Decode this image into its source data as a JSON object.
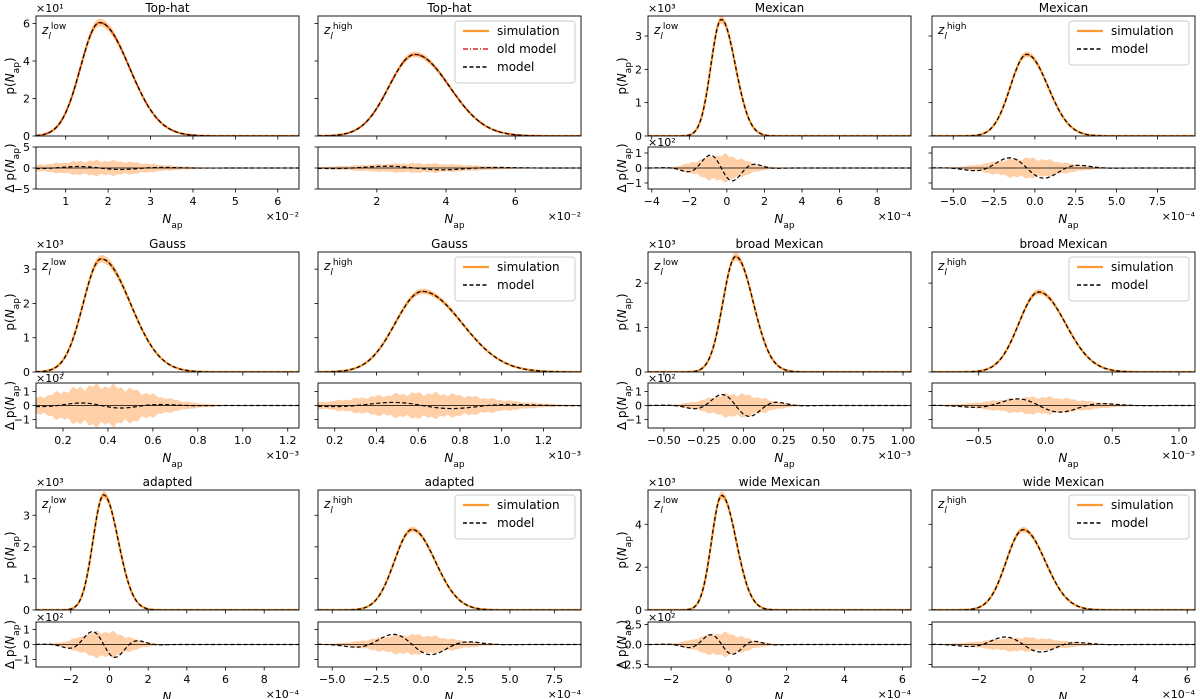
{
  "colors": {
    "simulation": "#ff9933",
    "band": "#ffcfa8",
    "old_model": "#d62728",
    "model": "#000000",
    "zero_line": "#000000"
  },
  "labels": {
    "ylabel_top": "p(N_ap)",
    "ylabel_bottom": "Δ p(N_ap)",
    "xlabel": "N_ap",
    "zlow": "z_l^low",
    "zhigh": "z_l^high",
    "legend_simulation": "simulation",
    "legend_old_model": "old model",
    "legend_model": "model"
  },
  "chart_data": [
    {
      "id": "tophat-low",
      "title": "Top-hat",
      "redshift": "low",
      "type": "line",
      "legend": false,
      "top": {
        "ylim": [
          0,
          6.4
        ],
        "yticks": [
          "0",
          "2",
          "4",
          "6"
        ],
        "yexp": "×10¹",
        "peak_x": 1.8,
        "peak_y": 6.05,
        "sig_l": 0.45,
        "sig_r": 0.7
      },
      "bottom": {
        "ylim": [
          -5,
          5
        ],
        "yticks": [
          "−5",
          "0",
          "5"
        ],
        "yexp": "",
        "resid_amp": 0.4,
        "band_half": 1.6
      },
      "xlim": [
        0.3,
        6.5
      ],
      "xticks": [
        "1",
        "2",
        "3",
        "4",
        "5",
        "6"
      ],
      "xtickvals": [
        1,
        2,
        3,
        4,
        5,
        6
      ],
      "xexp": "×10⁻²"
    },
    {
      "id": "tophat-high",
      "title": "Top-hat",
      "redshift": "high",
      "type": "line",
      "legend": true,
      "legend_items": [
        "simulation",
        "old_model",
        "model"
      ],
      "top": {
        "ylim": [
          0,
          6.4
        ],
        "yticks": [],
        "yexp": "",
        "peak_x": 3.1,
        "peak_y": 4.35,
        "sig_l": 0.75,
        "sig_r": 1.0
      },
      "bottom": {
        "ylim": [
          -5,
          5
        ],
        "yticks": [],
        "yexp": "",
        "resid_amp": 0.5,
        "band_half": 1.0
      },
      "xlim": [
        0.3,
        7.9
      ],
      "xticks": [
        "2",
        "4",
        "6"
      ],
      "xtickvals": [
        2,
        4,
        6
      ],
      "xexp": "×10⁻²"
    },
    {
      "id": "mexican-low",
      "title": "Mexican",
      "redshift": "low",
      "type": "line",
      "legend": false,
      "top": {
        "ylim": [
          0,
          3.6
        ],
        "yticks": [
          "0",
          "1",
          "2",
          "3"
        ],
        "yexp": "×10³",
        "peak_x": -0.3,
        "peak_y": 3.5,
        "sig_l": 0.55,
        "sig_r": 0.75
      },
      "bottom": {
        "ylim": [
          -1.4,
          1.4
        ],
        "yticks": [
          "−1",
          "0",
          "1"
        ],
        "yexp": "×10²",
        "resid_amp": 1.0,
        "band_half": 0.8
      },
      "xlim": [
        -4.2,
        9.8
      ],
      "xticks": [
        "−4",
        "−2",
        "0",
        "2",
        "4",
        "6",
        "8"
      ],
      "xtickvals": [
        -4,
        -2,
        0,
        2,
        4,
        6,
        8
      ],
      "xexp": "×10⁻⁴"
    },
    {
      "id": "mexican-high",
      "title": "Mexican",
      "redshift": "high",
      "type": "line",
      "legend": true,
      "legend_items": [
        "simulation",
        "model"
      ],
      "top": {
        "ylim": [
          0,
          3.6
        ],
        "yticks": [],
        "yexp": "",
        "peak_x": -0.5,
        "peak_y": 2.45,
        "sig_l": 1.0,
        "sig_r": 1.3
      },
      "bottom": {
        "ylim": [
          -1.4,
          1.4
        ],
        "yticks": [],
        "yexp": "",
        "resid_amp": 0.8,
        "band_half": 0.6
      },
      "xlim": [
        -6.3,
        9.8
      ],
      "xticks": [
        "−5.0",
        "−2.5",
        "0.0",
        "2.5",
        "5.0",
        "7.5"
      ],
      "xtickvals": [
        -5,
        -2.5,
        0,
        2.5,
        5,
        7.5
      ],
      "xexp": "×10⁻⁴"
    },
    {
      "id": "gauss-low",
      "title": "Gauss",
      "redshift": "low",
      "type": "line",
      "legend": false,
      "top": {
        "ylim": [
          0,
          3.5
        ],
        "yticks": [
          "0",
          "1",
          "2",
          "3"
        ],
        "yexp": "×10³",
        "peak_x": 0.37,
        "peak_y": 3.3,
        "sig_l": 0.08,
        "sig_r": 0.13
      },
      "bottom": {
        "ylim": [
          -1.6,
          1.6
        ],
        "yticks": [
          "−1",
          "0",
          "1"
        ],
        "yexp": "×10²",
        "resid_amp": 0.2,
        "band_half": 1.3
      },
      "xlim": [
        0.08,
        1.25
      ],
      "xticks": [
        "0.2",
        "0.4",
        "0.6",
        "0.8",
        "1.0",
        "1.2"
      ],
      "xtickvals": [
        0.2,
        0.4,
        0.6,
        0.8,
        1.0,
        1.2
      ],
      "xexp": "×10⁻³"
    },
    {
      "id": "gauss-high",
      "title": "Gauss",
      "redshift": "high",
      "type": "line",
      "legend": true,
      "legend_items": [
        "simulation",
        "model"
      ],
      "top": {
        "ylim": [
          0,
          3.5
        ],
        "yticks": [],
        "yexp": "",
        "peak_x": 0.62,
        "peak_y": 2.35,
        "sig_l": 0.13,
        "sig_r": 0.19
      },
      "bottom": {
        "ylim": [
          -1.6,
          1.6
        ],
        "yticks": [],
        "yexp": "",
        "resid_amp": 0.25,
        "band_half": 0.8
      },
      "xlim": [
        0.12,
        1.38
      ],
      "xticks": [
        "0.2",
        "0.4",
        "0.6",
        "0.8",
        "1.0",
        "1.2"
      ],
      "xtickvals": [
        0.2,
        0.4,
        0.6,
        0.8,
        1.0,
        1.2
      ],
      "xexp": "×10⁻³"
    },
    {
      "id": "broad-mexican-low",
      "title": "broad Mexican",
      "redshift": "low",
      "type": "line",
      "legend": false,
      "top": {
        "ylim": [
          0,
          2.7
        ],
        "yticks": [
          "0",
          "1",
          "2"
        ],
        "yexp": "×10³",
        "peak_x": -0.05,
        "peak_y": 2.6,
        "sig_l": 0.08,
        "sig_r": 0.11
      },
      "bottom": {
        "ylim": [
          -1.6,
          1.6
        ],
        "yticks": [
          "−1",
          "0",
          "1"
        ],
        "yexp": "×10²",
        "resid_amp": 0.9,
        "band_half": 0.75
      },
      "xlim": [
        -0.6,
        1.05
      ],
      "xticks": [
        "−0.50",
        "−0.25",
        "0.00",
        "0.25",
        "0.50",
        "0.75",
        "1.00"
      ],
      "xtickvals": [
        -0.5,
        -0.25,
        0,
        0.25,
        0.5,
        0.75,
        1.0
      ],
      "xexp": "×10⁻³"
    },
    {
      "id": "broad-mexican-high",
      "title": "broad Mexican",
      "redshift": "high",
      "type": "line",
      "legend": true,
      "legend_items": [
        "simulation",
        "model"
      ],
      "top": {
        "ylim": [
          0,
          2.7
        ],
        "yticks": [],
        "yexp": "",
        "peak_x": -0.05,
        "peak_y": 1.8,
        "sig_l": 0.15,
        "sig_r": 0.2
      },
      "bottom": {
        "ylim": [
          -1.6,
          1.6
        ],
        "yticks": [],
        "yexp": "",
        "resid_amp": 0.55,
        "band_half": 0.55
      },
      "xlim": [
        -0.85,
        1.12
      ],
      "xticks": [
        "−0.5",
        "0.0",
        "0.5",
        "1.0"
      ],
      "xtickvals": [
        -0.5,
        0,
        0.5,
        1.0
      ],
      "xexp": "×10⁻³"
    },
    {
      "id": "adapted-low",
      "title": "adapted",
      "redshift": "low",
      "type": "line",
      "legend": false,
      "top": {
        "ylim": [
          0,
          3.8
        ],
        "yticks": [
          "0",
          "1",
          "2",
          "3"
        ],
        "yexp": "×10³",
        "peak_x": -0.3,
        "peak_y": 3.65,
        "sig_l": 0.55,
        "sig_r": 0.75
      },
      "bottom": {
        "ylim": [
          -1.5,
          1.5
        ],
        "yticks": [
          "−1",
          "0",
          "1"
        ],
        "yexp": "×10²",
        "resid_amp": 1.0,
        "band_half": 0.8
      },
      "xlim": [
        -3.8,
        9.8
      ],
      "xticks": [
        "−2",
        "0",
        "2",
        "4",
        "6",
        "8"
      ],
      "xtickvals": [
        -2,
        0,
        2,
        4,
        6,
        8
      ],
      "xexp": "×10⁻⁴"
    },
    {
      "id": "adapted-high",
      "title": "adapted",
      "redshift": "high",
      "type": "line",
      "legend": true,
      "legend_items": [
        "simulation",
        "model"
      ],
      "top": {
        "ylim": [
          0,
          3.8
        ],
        "yticks": [],
        "yexp": "",
        "peak_x": -0.5,
        "peak_y": 2.55,
        "sig_l": 1.0,
        "sig_r": 1.3
      },
      "bottom": {
        "ylim": [
          -1.5,
          1.5
        ],
        "yticks": [],
        "yexp": "",
        "resid_amp": 0.8,
        "band_half": 0.6
      },
      "xlim": [
        -5.8,
        9.0
      ],
      "xticks": [
        "−5.0",
        "−2.5",
        "0.0",
        "2.5",
        "5.0",
        "7.5"
      ],
      "xtickvals": [
        -5,
        -2.5,
        0,
        2.5,
        5,
        7.5
      ],
      "xexp": "×10⁻⁴"
    },
    {
      "id": "wide-mexican-low",
      "title": "wide Mexican",
      "redshift": "low",
      "type": "line",
      "legend": false,
      "top": {
        "ylim": [
          0,
          5.6
        ],
        "yticks": [
          "0",
          "2",
          "4"
        ],
        "yexp": "×10³",
        "peak_x": -0.25,
        "peak_y": 5.35,
        "sig_l": 0.35,
        "sig_r": 0.5
      },
      "bottom": {
        "ylim": [
          -2.8,
          2.8
        ],
        "yticks": [
          "−2.5",
          "0.0",
          "2.5"
        ],
        "yexp": "×10²",
        "resid_amp": 1.4,
        "band_half": 1.3
      },
      "xlim": [
        -2.8,
        6.3
      ],
      "xticks": [
        "−2",
        "0",
        "2",
        "4",
        "6"
      ],
      "xtickvals": [
        -2,
        0,
        2,
        4,
        6
      ],
      "xexp": "×10⁻⁴"
    },
    {
      "id": "wide-mexican-high",
      "title": "wide Mexican",
      "redshift": "high",
      "type": "line",
      "legend": true,
      "legend_items": [
        "simulation",
        "model"
      ],
      "top": {
        "ylim": [
          0,
          5.6
        ],
        "yticks": [],
        "yexp": "",
        "peak_x": -0.3,
        "peak_y": 3.75,
        "sig_l": 0.65,
        "sig_r": 0.85
      },
      "bottom": {
        "ylim": [
          -2.8,
          2.8
        ],
        "yticks": [],
        "yexp": "",
        "resid_amp": 1.1,
        "band_half": 0.8
      },
      "xlim": [
        -3.8,
        6.3
      ],
      "xticks": [
        "−2",
        "0",
        "2",
        "4",
        "6"
      ],
      "xtickvals": [
        -2,
        0,
        2,
        4,
        6
      ],
      "xexp": "×10⁻⁴"
    }
  ]
}
